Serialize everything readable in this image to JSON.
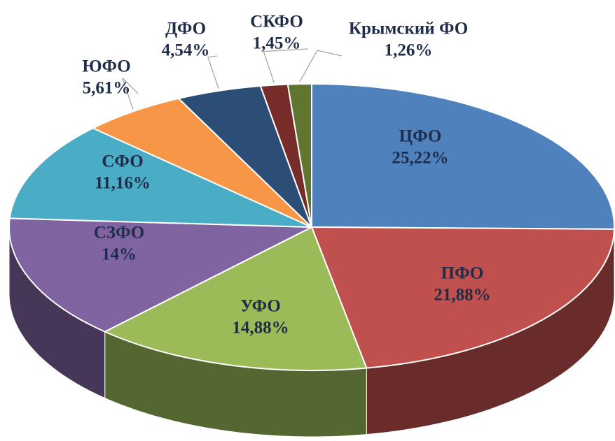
{
  "chart_data": {
    "type": "pie",
    "categories": [
      "ЦФО",
      "ПФО",
      "УФО",
      "СЗФО",
      "СФО",
      "ЮФО",
      "ДФО",
      "СКФО",
      "Крымский ФО"
    ],
    "values": [
      25.22,
      21.88,
      14.88,
      14,
      11.16,
      5.61,
      4.54,
      1.45,
      1.26
    ],
    "value_labels": [
      "25,22%",
      "21,88%",
      "14,88%",
      "14%",
      "11,16%",
      "5,61%",
      "4,54%",
      "1,45%",
      "1,26%"
    ],
    "colors": [
      "#4f81bd",
      "#c0504d",
      "#9bbb59",
      "#8064a2",
      "#4bacc6",
      "#f79646",
      "#2c4d75",
      "#772c2a",
      "#5f7530"
    ]
  }
}
